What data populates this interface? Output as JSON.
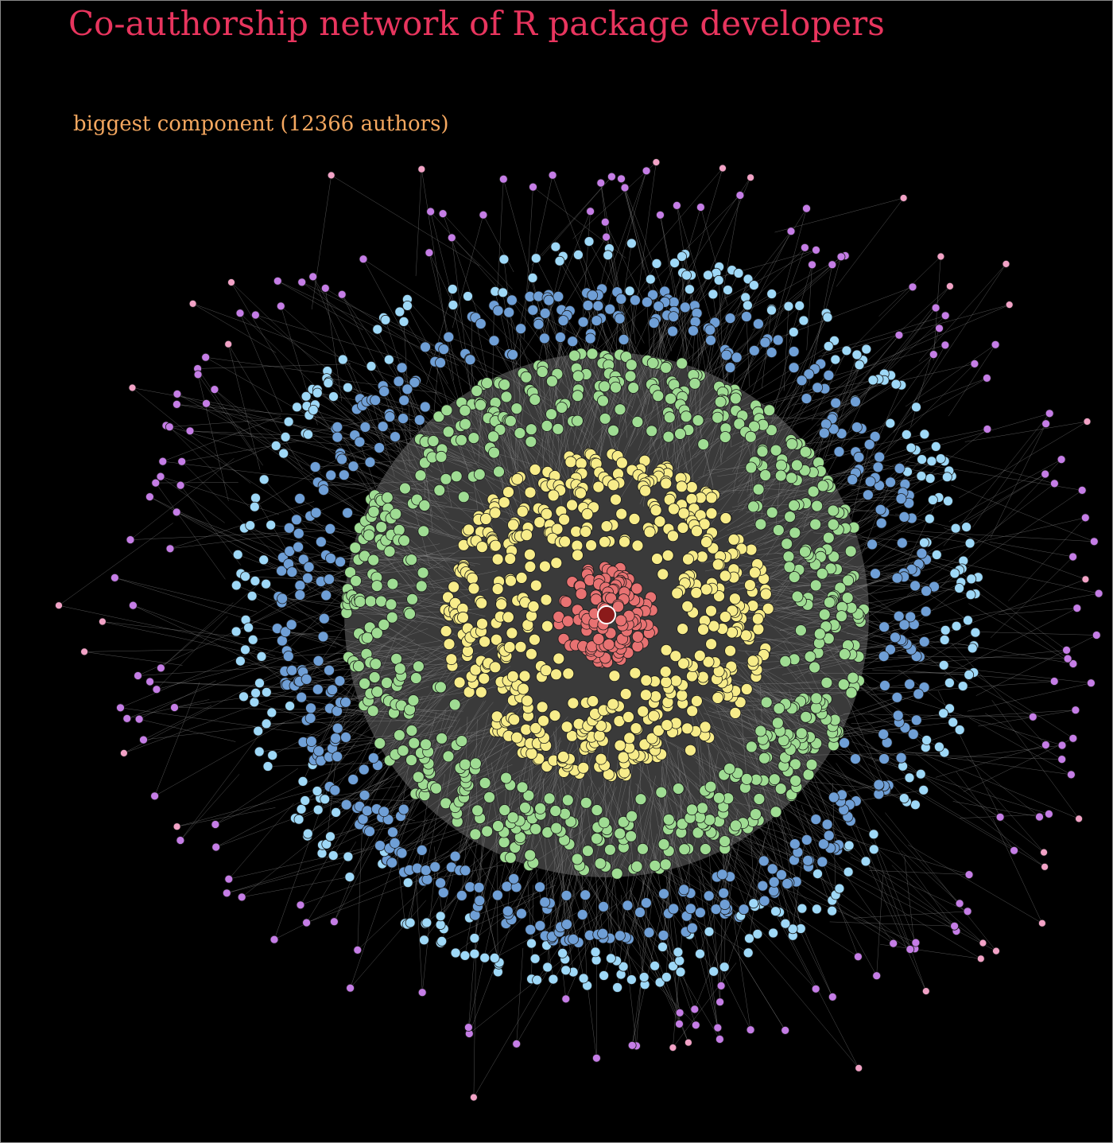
{
  "title": "Co-authorship network of R package developers",
  "subtitle": "biggest component (12366 authors)",
  "colors": {
    "background": "#000000",
    "title": "#e8355e",
    "subtitle": "#f5a860",
    "edge": "#8c8c8c",
    "node_outline": "#1a1a1a",
    "center_node": "#8b1a1a",
    "center_ring": "#ffffff"
  },
  "rings": [
    {
      "level": "core",
      "color": "#e87272"
    },
    {
      "level": "inner",
      "color": "#f7ec8a"
    },
    {
      "level": "middle",
      "color": "#9fdc93"
    },
    {
      "level": "outer-a",
      "color": "#6f9fd6"
    },
    {
      "level": "outer-b",
      "color": "#9ed8f7"
    },
    {
      "level": "fringe-a",
      "color": "#c57de6"
    },
    {
      "level": "fringe-b",
      "color": "#f2a2c6"
    }
  ]
}
